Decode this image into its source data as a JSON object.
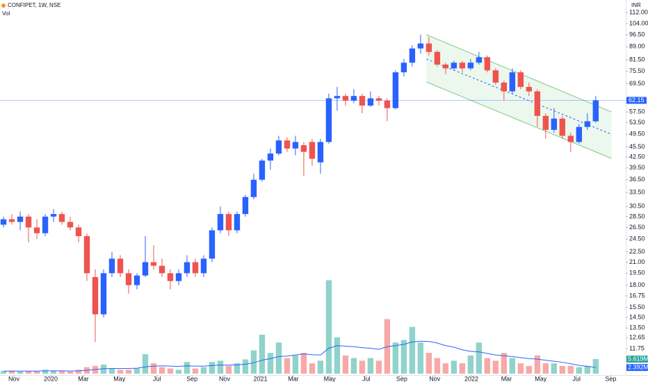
{
  "chart_data": {
    "type": "candlestick",
    "title": "CONFIPET, 1W, NSE",
    "subtitle": "Vol",
    "y_axis_label": "INR",
    "log_scale": true,
    "ylim": [
      9.85,
      121.8
    ],
    "yticks": [
      {
        "value": 112,
        "label": "112.00"
      },
      {
        "value": 104,
        "label": "104.00"
      },
      {
        "value": 96.5,
        "label": "96.50"
      },
      {
        "value": 89,
        "label": "89.00"
      },
      {
        "value": 81.5,
        "label": "81.50"
      },
      {
        "value": 75.5,
        "label": "75.50"
      },
      {
        "value": 69.5,
        "label": "69.50"
      },
      {
        "value": 57.5,
        "label": "57.50"
      },
      {
        "value": 53.5,
        "label": "53.50"
      },
      {
        "value": 49.5,
        "label": "49.50"
      },
      {
        "value": 45.5,
        "label": "45.50"
      },
      {
        "value": 42.5,
        "label": "42.50"
      },
      {
        "value": 39.5,
        "label": "39.50"
      },
      {
        "value": 36.5,
        "label": "36.50"
      },
      {
        "value": 33.5,
        "label": "33.50"
      },
      {
        "value": 30.5,
        "label": "30.50"
      },
      {
        "value": 28.5,
        "label": "28.50"
      },
      {
        "value": 26.5,
        "label": "26.50"
      },
      {
        "value": 24.5,
        "label": "24.50"
      },
      {
        "value": 22.5,
        "label": "22.50"
      },
      {
        "value": 21,
        "label": "21.00"
      },
      {
        "value": 19.5,
        "label": "19.50"
      },
      {
        "value": 18,
        "label": "18.00"
      },
      {
        "value": 16.75,
        "label": "16.75"
      },
      {
        "value": 15.5,
        "label": "15.50"
      },
      {
        "value": 14.5,
        "label": "14.50"
      },
      {
        "value": 13.5,
        "label": "13.50"
      },
      {
        "value": 12.65,
        "label": "12.65"
      },
      {
        "value": 11.75,
        "label": "11.75"
      }
    ],
    "xlim": [
      -0.42,
      74.6
    ],
    "xticks": [
      {
        "value": 1.25,
        "label": "Nov"
      },
      {
        "value": 5.67,
        "label": "2020"
      },
      {
        "value": 9.58,
        "label": "Mar"
      },
      {
        "value": 13.9,
        "label": "May"
      },
      {
        "value": 18.4,
        "label": "Jul"
      },
      {
        "value": 22.6,
        "label": "Sep"
      },
      {
        "value": 26.5,
        "label": "Nov"
      },
      {
        "value": 30.8,
        "label": "2021"
      },
      {
        "value": 34.75,
        "label": "Mar"
      },
      {
        "value": 39.1,
        "label": "May"
      },
      {
        "value": 43.5,
        "label": "Jul"
      },
      {
        "value": 47.75,
        "label": "Sep"
      },
      {
        "value": 51.7,
        "label": "Nov"
      },
      {
        "value": 56.1,
        "label": "2022"
      },
      {
        "value": 60.3,
        "label": "Mar"
      },
      {
        "value": 64.4,
        "label": "May"
      },
      {
        "value": 68.7,
        "label": "Jul"
      },
      {
        "value": 72.8,
        "label": "Sep"
      }
    ],
    "open": [
      27,
      28,
      27.5,
      28.5,
      26.5,
      25.5,
      28.5,
      29,
      27.5,
      26.5,
      25,
      19,
      14.8,
      19.5,
      21.5,
      19.5,
      18,
      19.2,
      21,
      20.5,
      19.5,
      18.5,
      19.5,
      21,
      19.5,
      21.5,
      26,
      29,
      26,
      29,
      32.5,
      36.5,
      41.5,
      43.5,
      47.5,
      45,
      46,
      47,
      41,
      47,
      63,
      64,
      62,
      64,
      60,
      63,
      62,
      59,
      75,
      80,
      88,
      91,
      86,
      79,
      77,
      80,
      77,
      80,
      83,
      76,
      70,
      66,
      75,
      68,
      66,
      56,
      51,
      55,
      49,
      47,
      52,
      54
    ],
    "high": [
      28.5,
      29,
      29.5,
      29,
      28,
      29,
      30,
      29.5,
      28.5,
      27,
      25.5,
      20,
      20,
      22.5,
      22,
      20,
      19.5,
      25,
      23.5,
      21.5,
      20,
      20,
      22,
      21.5,
      22,
      26.5,
      30.5,
      29.5,
      29.5,
      33,
      38,
      42,
      45,
      49,
      48.5,
      49,
      47,
      48,
      48,
      65,
      68,
      65,
      67,
      65,
      66,
      64,
      63,
      76,
      82,
      90,
      96.5,
      95,
      87,
      80,
      81,
      81,
      82,
      86,
      84,
      77,
      71,
      77,
      76,
      70,
      67,
      57,
      59,
      56,
      50,
      53,
      57,
      64
    ],
    "low": [
      26.5,
      27,
      26,
      24,
      24.5,
      25,
      27.5,
      27,
      26,
      24,
      18.5,
      12.3,
      14.5,
      19,
      19,
      17,
      17.5,
      19,
      20,
      19,
      17.5,
      18,
      19,
      19,
      19,
      21,
      25.5,
      25,
      25.5,
      28.5,
      32,
      36,
      39,
      43,
      44,
      43,
      37.5,
      40,
      38,
      46.5,
      58,
      60,
      61,
      57,
      59.5,
      60,
      54,
      58.5,
      73,
      78,
      85,
      84,
      78,
      74,
      76,
      75,
      76,
      79,
      75,
      69,
      62,
      65,
      67,
      64,
      52,
      48,
      50,
      48,
      44,
      46.5,
      51,
      53.5
    ],
    "close": [
      28,
      27.5,
      28.5,
      26.5,
      25.5,
      28.5,
      29,
      27.5,
      26.5,
      25,
      19.5,
      14.8,
      19.5,
      21.5,
      19.5,
      18,
      19.2,
      21,
      20.5,
      19.5,
      18.5,
      19.5,
      21,
      19.5,
      21.5,
      26,
      29,
      26,
      29,
      32.5,
      36.5,
      41.5,
      43.5,
      47.5,
      45,
      47,
      44,
      42,
      47,
      63,
      64,
      62,
      64,
      60,
      63,
      62,
      59,
      75,
      80,
      88,
      91,
      86,
      79,
      77,
      80,
      77,
      80,
      83,
      76,
      70,
      66,
      75,
      68,
      66,
      56,
      51,
      55,
      49,
      47,
      52,
      54,
      62.15
    ],
    "volume": [
      1000000.0,
      1200000.0,
      800000.0,
      1000000.0,
      900000.0,
      1500000.0,
      1200000.0,
      1000000.0,
      800000.0,
      1500000.0,
      2500000.0,
      3000000.0,
      3500000.0,
      2000000.0,
      1500000.0,
      1500000.0,
      2000000.0,
      7500000.0,
      4000000.0,
      2500000.0,
      2000000.0,
      1500000.0,
      4500000.0,
      2000000.0,
      2500000.0,
      4500000.0,
      5000000.0,
      3000000.0,
      4000000.0,
      5500000.0,
      9000000.0,
      15000000.0,
      8000000.0,
      12000000.0,
      6000000.0,
      7000000.0,
      8000000.0,
      4000000.0,
      5000000.0,
      36000000.0,
      14000000.0,
      7000000.0,
      6000000.0,
      5000000.0,
      6000000.0,
      5000000.0,
      21000000.0,
      12000000.0,
      13000000.0,
      18000000.0,
      12000000.0,
      8000000.0,
      6000000.0,
      4000000.0,
      5000000.0,
      4000000.0,
      7000000.0,
      12000000.0,
      6000000.0,
      5000000.0,
      8000000.0,
      6000000.0,
      4000000.0,
      3000000.0,
      7000000.0,
      4000000.0,
      4000000.0,
      3000000.0,
      3000000.0,
      2500000.0,
      3000000.0,
      5619000.0
    ],
    "volume_ma": [
      1000000.0,
      1000000.0,
      1000000.0,
      1000000.0,
      1000000.0,
      1100000.0,
      1100000.0,
      1100000.0,
      1000000.0,
      1100000.0,
      1300000.0,
      1600000.0,
      1900000.0,
      2000000.0,
      2000000.0,
      2000000.0,
      2100000.0,
      2600000.0,
      2900000.0,
      3000000.0,
      2900000.0,
      2800000.0,
      3000000.0,
      2900000.0,
      2900000.0,
      3100000.0,
      3300000.0,
      3300000.0,
      3400000.0,
      3600000.0,
      4200000.0,
      5200000.0,
      5800000.0,
      6600000.0,
      6800000.0,
      7200000.0,
      7600000.0,
      7300000.0,
      7200000.0,
      9800000.0,
      10800000.0,
      10600000.0,
      10400000.0,
      10000000.0,
      9800000.0,
      9400000.0,
      10400000.0,
      10800000.0,
      11300000.0,
      12200000.0,
      12500000.0,
      12400000.0,
      11800000.0,
      10800000.0,
      10200000.0,
      9200000.0,
      8600000.0,
      8400000.0,
      7800000.0,
      7200000.0,
      6900000.0,
      6600000.0,
      6200000.0,
      5800000.0,
      5600000.0,
      5200000.0,
      4800000.0,
      4400000.0,
      3800000.0,
      3200000.0,
      2800000.0,
      2392000.0
    ],
    "volume_label": "5.619M",
    "volume_ma_label": "2.392M",
    "vol_ylim": [
      0,
      144000000.0
    ],
    "up_color": "#2962ff",
    "down_color": "#ef5350",
    "volume_up_color": "#8fd3cb",
    "volume_down_color": "#f7a9a7",
    "volume_ma_color": "#2962ff",
    "channel": {
      "x": [
        50.7,
        72.9
      ],
      "upper": [
        96.5,
        57.5
      ],
      "middle": [
        82,
        49.5
      ],
      "lower": [
        70.3,
        42.1
      ],
      "color": "#81c784"
    }
  }
}
